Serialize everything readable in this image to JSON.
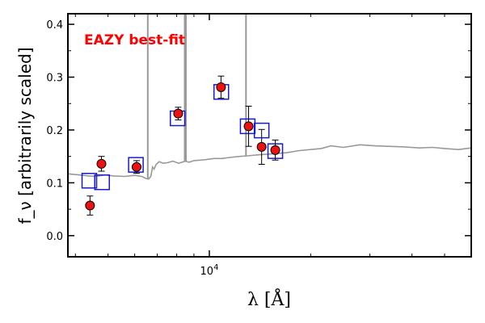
{
  "chart_data": {
    "type": "scatter",
    "xscale": "log",
    "xlim": [
      3800,
      60000
    ],
    "ylim": [
      -0.04,
      0.42
    ],
    "xticks": [
      {
        "value": 10000,
        "label": "10^4"
      }
    ],
    "yticks": [
      0.0,
      0.1,
      0.2,
      0.3,
      0.4
    ],
    "ytick_labels": [
      "0.0",
      "0.1",
      "0.2",
      "0.3",
      "0.4"
    ],
    "xlabel": "λ [Å]",
    "ylabel": "f_ν [arbitrarily scaled]",
    "annotation": "EAZY best-fit",
    "grid": false,
    "colors": {
      "template": "#999999",
      "observed": "#ee1111",
      "model": "#1a1acc",
      "annotation": "#ff0000"
    },
    "series": [
      {
        "kind": "template_spectrum",
        "x": [
          3800,
          4100,
          4400,
          4600,
          4900,
          5200,
          5600,
          6000,
          6300,
          6500,
          6600,
          6700,
          6780,
          6850,
          6950,
          7100,
          7300,
          7500,
          7800,
          8100,
          8500,
          8700,
          9000,
          9400,
          9800,
          10300,
          10900,
          11500,
          12300,
          13000,
          14000,
          15500,
          17000,
          18500,
          20000,
          21500,
          23000,
          25000,
          28000,
          31000,
          34000,
          38000,
          42000,
          46000,
          50000,
          55000,
          60000
        ],
        "y": [
          0.117,
          0.115,
          0.113,
          0.112,
          0.115,
          0.113,
          0.112,
          0.114,
          0.112,
          0.108,
          0.107,
          0.112,
          0.13,
          0.126,
          0.135,
          0.14,
          0.137,
          0.138,
          0.141,
          0.137,
          0.141,
          0.139,
          0.142,
          0.143,
          0.144,
          0.146,
          0.146,
          0.148,
          0.15,
          0.151,
          0.153,
          0.155,
          0.157,
          0.161,
          0.163,
          0.165,
          0.17,
          0.167,
          0.172,
          0.17,
          0.169,
          0.168,
          0.166,
          0.167,
          0.165,
          0.163,
          0.166
        ]
      },
      {
        "kind": "emission_lines",
        "x": [
          6563,
          8450,
          8520,
          12850
        ],
        "top": [
          0.42,
          0.42,
          0.42,
          0.42
        ]
      },
      {
        "kind": "model_photometry",
        "x": [
          4400,
          4800,
          6050,
          8050,
          10850,
          13000,
          14300,
          15700
        ],
        "y": [
          0.104,
          0.101,
          0.134,
          0.222,
          0.272,
          0.207,
          0.199,
          0.16
        ]
      },
      {
        "kind": "observed_photometry",
        "x": [
          4420,
          4780,
          6080,
          8080,
          10830,
          13080,
          14300,
          15700
        ],
        "y": [
          0.057,
          0.136,
          0.13,
          0.231,
          0.281,
          0.207,
          0.168,
          0.162
        ],
        "yerr": [
          0.018,
          0.014,
          0.012,
          0.012,
          0.021,
          0.038,
          0.033,
          0.019
        ]
      }
    ]
  }
}
